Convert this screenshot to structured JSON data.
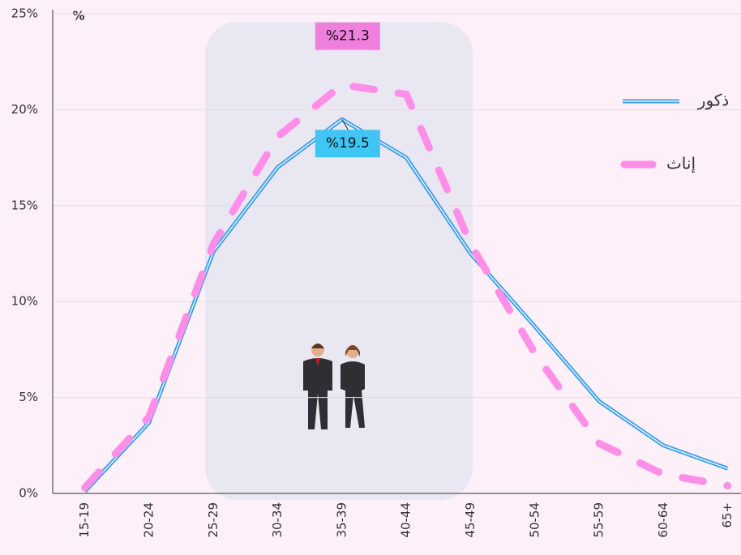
{
  "chart_data": {
    "type": "line",
    "y_axis_label": "%",
    "categories": [
      "15-19",
      "20-24",
      "25-29",
      "30-34",
      "35-39",
      "40-44",
      "45-49",
      "50-54",
      "55-59",
      "60-64",
      "65+"
    ],
    "series": [
      {
        "name": "ذكور",
        "color": "#3ea0e8",
        "values": [
          0.1,
          3.7,
          12.6,
          17.0,
          19.5,
          17.5,
          12.5,
          8.7,
          4.8,
          2.5,
          1.3
        ],
        "value_labels": [
          null,
          null,
          null,
          null,
          "%19.5",
          null,
          null,
          null,
          null,
          null,
          null
        ]
      },
      {
        "name": "إناث",
        "color": "#ff8ee8",
        "values": [
          0.3,
          4.0,
          13.0,
          18.6,
          21.3,
          20.8,
          13.0,
          7.3,
          2.6,
          1.0,
          0.4
        ],
        "value_labels": [
          null,
          null,
          null,
          null,
          "%21.3",
          null,
          null,
          null,
          null,
          null,
          null
        ]
      }
    ],
    "ylim": [
      0,
      25
    ],
    "yticks": [
      {
        "value": 0,
        "label": "0%"
      },
      {
        "value": 5,
        "label": "5%"
      },
      {
        "value": 10,
        "label": "10%"
      },
      {
        "value": 15,
        "label": "15%"
      },
      {
        "value": 20,
        "label": "20%"
      },
      {
        "value": 25,
        "label": "25%"
      }
    ],
    "grid": true
  }
}
